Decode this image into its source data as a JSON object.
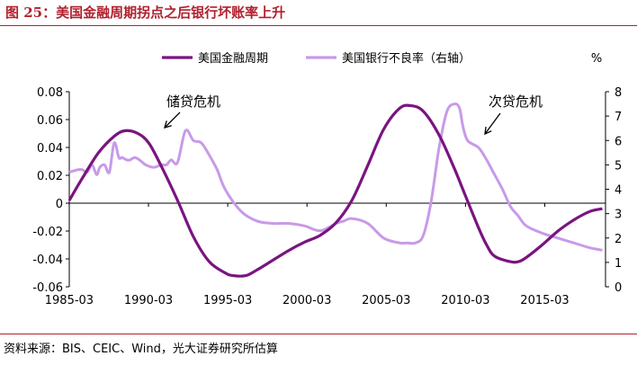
{
  "figure": {
    "title": "图 25：美国金融周期拐点之后银行坏账率上升",
    "source": "资料来源：BIS、CEIC、Wind，光大证券研究所估算"
  },
  "colors": {
    "title": "#b0212d",
    "series1": "#7a1480",
    "series2": "#c89ae8"
  },
  "chart_data": {
    "type": "line",
    "legend_position": "top",
    "grid": false,
    "x_tick_labels": [
      "1985-03",
      "1990-03",
      "1995-03",
      "2000-03",
      "2005-03",
      "2010-03",
      "2015-03"
    ],
    "y_left_ticks": [
      "0.08",
      "0.06",
      "0.04",
      "0.02",
      "0",
      "-0.02",
      "-0.04",
      "-0.06"
    ],
    "y_right_ticks": [
      "8",
      "7",
      "6",
      "5",
      "4",
      "3",
      "2",
      "1",
      "0"
    ],
    "ylim_left": [
      -0.06,
      0.08
    ],
    "ylim_right": [
      0,
      8
    ],
    "y_right_unit": "%",
    "xlim": [
      1985.17,
      2019.0
    ],
    "annotations": [
      {
        "text": "储贷危机",
        "x": 1992.5
      },
      {
        "text": "次贷危机",
        "x": 2010.0
      }
    ],
    "series": [
      {
        "name": "美国金融周期",
        "axis": "left",
        "x": [
          1985.17,
          1986.0,
          1987.0,
          1988.0,
          1988.7,
          1989.5,
          1990.2,
          1991.0,
          1992.0,
          1993.0,
          1994.0,
          1995.0,
          1995.5,
          1996.3,
          1997.0,
          1998.0,
          1999.0,
          2000.0,
          2001.0,
          2002.0,
          2003.0,
          2004.0,
          2005.0,
          2006.0,
          2006.7,
          2007.5,
          2008.5,
          2009.5,
          2010.0,
          2011.0,
          2011.5,
          2012.0,
          2013.0,
          2013.5,
          2014.0,
          2015.0,
          2016.0,
          2017.0,
          2018.0,
          2018.8
        ],
        "values": [
          0.002,
          0.018,
          0.036,
          0.048,
          0.052,
          0.05,
          0.043,
          0.026,
          0.002,
          -0.024,
          -0.042,
          -0.05,
          -0.052,
          -0.052,
          -0.048,
          -0.041,
          -0.034,
          -0.028,
          -0.023,
          -0.014,
          0.002,
          0.027,
          0.053,
          0.068,
          0.07,
          0.066,
          0.049,
          0.024,
          0.01,
          -0.018,
          -0.03,
          -0.038,
          -0.042,
          -0.042,
          -0.039,
          -0.03,
          -0.02,
          -0.012,
          -0.006,
          -0.004
        ]
      },
      {
        "name": "美国银行不良率（右轴）",
        "axis": "right",
        "x": [
          1985.17,
          1985.7,
          1986.0,
          1986.3,
          1986.6,
          1986.9,
          1987.1,
          1987.4,
          1987.7,
          1988.0,
          1988.3,
          1988.5,
          1988.8,
          1989.0,
          1989.3,
          1989.6,
          1990.0,
          1990.5,
          1991.0,
          1991.3,
          1991.6,
          1992.0,
          1992.5,
          1993.0,
          1993.5,
          1994.0,
          1994.5,
          1995.0,
          1996.0,
          1997.0,
          1998.0,
          1999.0,
          2000.0,
          2001.0,
          2002.0,
          2002.5,
          2003.0,
          2004.0,
          2005.0,
          2006.0,
          2006.5,
          2007.0,
          2007.5,
          2008.0,
          2008.5,
          2009.0,
          2009.5,
          2009.8,
          2010.0,
          2010.3,
          2011.0,
          2011.5,
          2012.0,
          2012.5,
          2013.0,
          2013.5,
          2014.0,
          2015.0,
          2016.0,
          2017.0,
          2018.0,
          2018.8
        ],
        "values": [
          4.7,
          4.8,
          4.8,
          4.7,
          5.0,
          4.6,
          4.9,
          5.0,
          4.7,
          5.9,
          5.3,
          5.3,
          5.2,
          5.2,
          5.3,
          5.2,
          5.0,
          4.9,
          5.0,
          5.0,
          5.2,
          5.1,
          6.4,
          6.0,
          5.9,
          5.4,
          4.8,
          4.0,
          3.1,
          2.7,
          2.6,
          2.6,
          2.5,
          2.3,
          2.6,
          2.7,
          2.8,
          2.6,
          2.0,
          1.8,
          1.8,
          1.8,
          2.1,
          3.5,
          5.7,
          7.2,
          7.5,
          7.3,
          6.6,
          6.0,
          5.7,
          5.2,
          4.6,
          4.0,
          3.3,
          2.9,
          2.5,
          2.2,
          2.0,
          1.8,
          1.6,
          1.5
        ]
      }
    ]
  }
}
